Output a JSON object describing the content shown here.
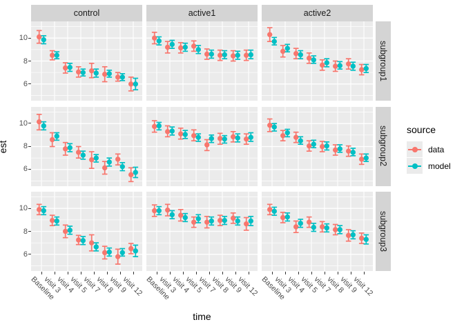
{
  "figure": {
    "series_colors": {
      "data": "#F8766D",
      "model": "#00BFC4"
    },
    "panel_bg": "#EBEBEB",
    "strip_bg": "#D4D4D4",
    "grid_color": "#FFFFFF",
    "tick_text_color": "#4D4D4D"
  },
  "chart_data": {
    "type": "scatter",
    "subtype": "pointrange-errorbar",
    "title": "",
    "xlabel": "time",
    "ylabel": "est",
    "x_categories": [
      "Baseline",
      "visit 3",
      "visit 4",
      "visit 5",
      "visit 7",
      "visit 8",
      "visit 9",
      "visit 12"
    ],
    "col_facets": [
      "control",
      "active1",
      "active2"
    ],
    "row_facets": [
      "subgroup1",
      "subgroup2",
      "subgroup3"
    ],
    "ylim": [
      4.55,
      11.45
    ],
    "yticks": [
      6,
      8,
      10
    ],
    "yminor": [
      5,
      7,
      9,
      11
    ],
    "grid": true,
    "legend": {
      "title": "source",
      "position": "right",
      "entries": [
        {
          "label": "data",
          "color": "#F8766D"
        },
        {
          "label": "model",
          "color": "#00BFC4"
        }
      ]
    },
    "panels": [
      {
        "col": "control",
        "row": "subgroup1",
        "series": [
          {
            "name": "data",
            "points": [
              [
                10.1,
                9.55,
                10.65
              ],
              [
                8.5,
                8.1,
                8.9
              ],
              [
                7.4,
                6.95,
                7.85
              ],
              [
                7.05,
                6.6,
                7.5
              ],
              [
                7.15,
                6.55,
                7.8
              ],
              [
                6.85,
                6.2,
                7.5
              ],
              [
                6.6,
                6.25,
                7.0
              ],
              [
                6.0,
                5.4,
                6.6
              ]
            ]
          },
          {
            "name": "model",
            "points": [
              [
                9.85,
                9.5,
                10.2
              ],
              [
                8.5,
                8.2,
                8.8
              ],
              [
                7.45,
                7.1,
                7.8
              ],
              [
                7.0,
                6.7,
                7.3
              ],
              [
                6.95,
                6.6,
                7.3
              ],
              [
                6.9,
                6.6,
                7.2
              ],
              [
                6.6,
                6.3,
                6.9
              ],
              [
                6.0,
                5.5,
                6.5
              ]
            ]
          }
        ]
      },
      {
        "col": "active1",
        "row": "subgroup1",
        "series": [
          {
            "name": "data",
            "points": [
              [
                10.0,
                9.5,
                10.5
              ],
              [
                9.2,
                8.7,
                9.7
              ],
              [
                9.15,
                8.7,
                9.6
              ],
              [
                9.3,
                8.85,
                9.75
              ],
              [
                8.6,
                8.15,
                9.05
              ],
              [
                8.5,
                8.05,
                8.95
              ],
              [
                8.45,
                8.0,
                8.9
              ],
              [
                8.5,
                8.05,
                8.95
              ]
            ]
          },
          {
            "name": "model",
            "points": [
              [
                9.75,
                9.4,
                10.1
              ],
              [
                9.45,
                9.1,
                9.8
              ],
              [
                9.2,
                8.85,
                9.55
              ],
              [
                9.0,
                8.65,
                9.35
              ],
              [
                8.6,
                8.25,
                8.95
              ],
              [
                8.55,
                8.2,
                8.9
              ],
              [
                8.5,
                8.15,
                8.85
              ],
              [
                8.55,
                8.2,
                8.95
              ]
            ]
          }
        ]
      },
      {
        "col": "active2",
        "row": "subgroup1",
        "series": [
          {
            "name": "data",
            "points": [
              [
                10.3,
                9.7,
                10.9
              ],
              [
                8.85,
                8.35,
                9.35
              ],
              [
                8.65,
                8.2,
                9.1
              ],
              [
                8.25,
                7.8,
                8.7
              ],
              [
                7.65,
                7.2,
                8.1
              ],
              [
                7.55,
                7.1,
                8.0
              ],
              [
                7.75,
                7.3,
                8.2
              ],
              [
                7.25,
                6.8,
                7.7
              ]
            ]
          },
          {
            "name": "model",
            "points": [
              [
                9.7,
                9.4,
                10.05
              ],
              [
                9.1,
                8.8,
                9.45
              ],
              [
                8.55,
                8.2,
                8.9
              ],
              [
                8.1,
                7.8,
                8.45
              ],
              [
                7.85,
                7.5,
                8.2
              ],
              [
                7.6,
                7.3,
                7.95
              ],
              [
                7.55,
                7.2,
                7.9
              ],
              [
                7.35,
                7.0,
                7.7
              ]
            ]
          }
        ]
      },
      {
        "col": "control",
        "row": "subgroup2",
        "series": [
          {
            "name": "data",
            "points": [
              [
                10.15,
                9.45,
                10.8
              ],
              [
                8.6,
                8.0,
                9.2
              ],
              [
                7.8,
                7.25,
                8.35
              ],
              [
                7.5,
                7.0,
                8.0
              ],
              [
                6.85,
                6.1,
                7.55
              ],
              [
                6.15,
                5.6,
                6.7
              ],
              [
                6.9,
                6.4,
                7.35
              ],
              [
                5.55,
                4.95,
                6.15
              ]
            ]
          },
          {
            "name": "model",
            "points": [
              [
                9.8,
                9.45,
                10.15
              ],
              [
                8.9,
                8.55,
                9.2
              ],
              [
                7.9,
                7.55,
                8.25
              ],
              [
                7.25,
                6.9,
                7.6
              ],
              [
                7.0,
                6.65,
                7.3
              ],
              [
                6.65,
                6.3,
                7.0
              ],
              [
                6.25,
                5.9,
                6.6
              ],
              [
                5.75,
                5.3,
                6.2
              ]
            ]
          }
        ]
      },
      {
        "col": "active1",
        "row": "subgroup2",
        "series": [
          {
            "name": "data",
            "points": [
              [
                9.75,
                9.25,
                10.25
              ],
              [
                9.3,
                8.85,
                9.8
              ],
              [
                9.1,
                8.65,
                9.6
              ],
              [
                8.95,
                8.5,
                9.45
              ],
              [
                8.15,
                7.65,
                8.6
              ],
              [
                8.7,
                8.2,
                9.15
              ],
              [
                8.85,
                8.4,
                9.3
              ],
              [
                8.65,
                8.2,
                9.1
              ]
            ]
          },
          {
            "name": "model",
            "points": [
              [
                9.8,
                9.45,
                10.1
              ],
              [
                9.35,
                9.0,
                9.7
              ],
              [
                9.05,
                8.7,
                9.4
              ],
              [
                8.8,
                8.45,
                9.1
              ],
              [
                8.7,
                8.35,
                9.0
              ],
              [
                8.65,
                8.3,
                8.95
              ],
              [
                8.75,
                8.4,
                9.1
              ],
              [
                8.8,
                8.45,
                9.2
              ]
            ]
          }
        ]
      },
      {
        "col": "active2",
        "row": "subgroup2",
        "series": [
          {
            "name": "data",
            "points": [
              [
                9.85,
                9.3,
                10.4
              ],
              [
                8.95,
                8.5,
                9.4
              ],
              [
                8.8,
                8.35,
                9.25
              ],
              [
                8.05,
                7.6,
                8.5
              ],
              [
                8.0,
                7.55,
                8.45
              ],
              [
                7.7,
                7.25,
                8.15
              ],
              [
                7.6,
                7.15,
                8.05
              ],
              [
                6.9,
                6.45,
                7.35
              ]
            ]
          },
          {
            "name": "model",
            "points": [
              [
                9.7,
                9.35,
                10.0
              ],
              [
                9.2,
                8.85,
                9.5
              ],
              [
                8.5,
                8.2,
                8.85
              ],
              [
                8.2,
                7.9,
                8.55
              ],
              [
                8.05,
                7.7,
                8.4
              ],
              [
                7.8,
                7.5,
                8.15
              ],
              [
                7.5,
                7.2,
                7.85
              ],
              [
                7.0,
                6.7,
                7.35
              ]
            ]
          }
        ]
      },
      {
        "col": "control",
        "row": "subgroup3",
        "series": [
          {
            "name": "data",
            "points": [
              [
                9.9,
                9.45,
                10.35
              ],
              [
                8.95,
                8.5,
                9.4
              ],
              [
                8.0,
                7.45,
                8.55
              ],
              [
                7.25,
                6.85,
                7.65
              ],
              [
                7.0,
                6.3,
                7.7
              ],
              [
                6.15,
                5.6,
                6.7
              ],
              [
                5.8,
                5.15,
                6.45
              ],
              [
                6.5,
                6.05,
                6.95
              ]
            ]
          },
          {
            "name": "model",
            "points": [
              [
                9.8,
                9.45,
                10.15
              ],
              [
                8.9,
                8.55,
                9.25
              ],
              [
                8.1,
                7.75,
                8.45
              ],
              [
                7.2,
                6.85,
                7.55
              ],
              [
                6.65,
                6.3,
                7.0
              ],
              [
                6.2,
                5.85,
                6.55
              ],
              [
                6.15,
                5.85,
                6.5
              ],
              [
                6.3,
                5.8,
                6.8
              ]
            ]
          }
        ]
      },
      {
        "col": "active1",
        "row": "subgroup3",
        "series": [
          {
            "name": "data",
            "points": [
              [
                9.8,
                9.3,
                10.3
              ],
              [
                9.85,
                9.35,
                10.35
              ],
              [
                9.4,
                8.9,
                9.9
              ],
              [
                8.8,
                8.35,
                9.25
              ],
              [
                8.8,
                8.3,
                9.3
              ],
              [
                8.95,
                8.5,
                9.4
              ],
              [
                9.15,
                8.7,
                9.6
              ],
              [
                8.65,
                8.1,
                9.2
              ]
            ]
          },
          {
            "name": "model",
            "points": [
              [
                9.8,
                9.45,
                10.15
              ],
              [
                9.45,
                9.1,
                9.8
              ],
              [
                9.2,
                8.85,
                9.55
              ],
              [
                9.1,
                8.75,
                9.45
              ],
              [
                8.9,
                8.55,
                9.25
              ],
              [
                8.95,
                8.6,
                9.3
              ],
              [
                8.9,
                8.55,
                9.25
              ],
              [
                8.9,
                8.5,
                9.3
              ]
            ]
          }
        ]
      },
      {
        "col": "active2",
        "row": "subgroup3",
        "series": [
          {
            "name": "data",
            "points": [
              [
                9.9,
                9.45,
                10.35
              ],
              [
                9.2,
                8.75,
                9.65
              ],
              [
                8.4,
                7.9,
                8.9
              ],
              [
                8.8,
                8.35,
                9.25
              ],
              [
                8.4,
                7.95,
                8.85
              ],
              [
                8.15,
                7.7,
                8.6
              ],
              [
                7.65,
                7.15,
                8.15
              ],
              [
                7.4,
                6.95,
                7.85
              ]
            ]
          },
          {
            "name": "model",
            "points": [
              [
                9.75,
                9.4,
                10.1
              ],
              [
                9.25,
                8.9,
                9.6
              ],
              [
                8.7,
                8.35,
                9.05
              ],
              [
                8.35,
                8.0,
                8.7
              ],
              [
                8.3,
                7.95,
                8.65
              ],
              [
                8.15,
                7.8,
                8.5
              ],
              [
                7.7,
                7.35,
                8.05
              ],
              [
                7.3,
                6.9,
                7.7
              ]
            ]
          }
        ]
      }
    ]
  }
}
